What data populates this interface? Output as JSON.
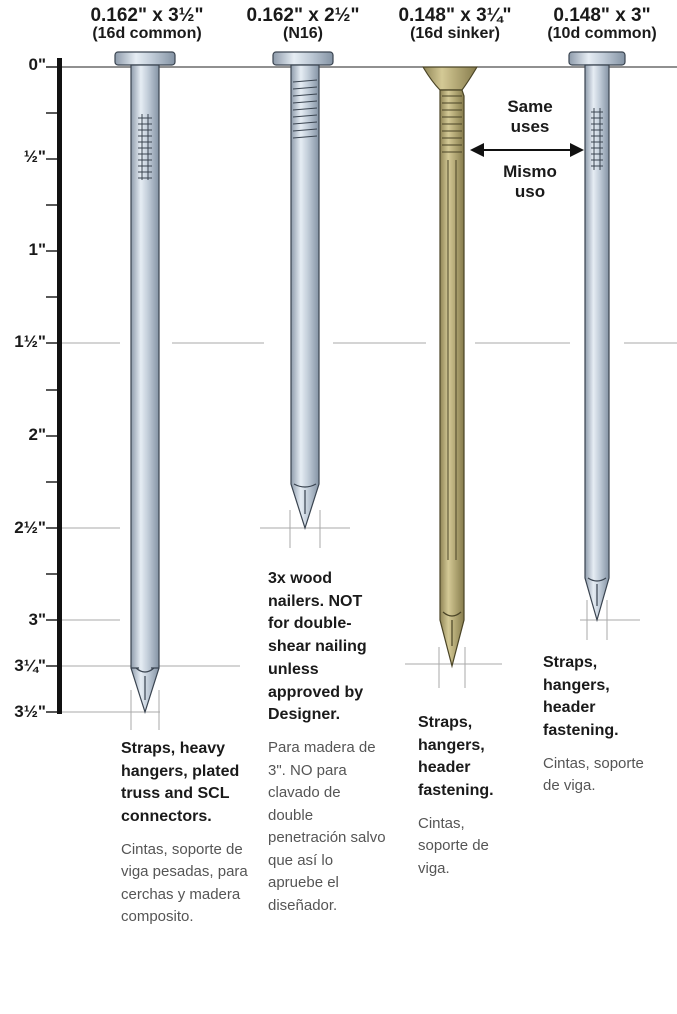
{
  "nails": [
    {
      "size": "0.162\" x 3½\"",
      "name": "(16d common)",
      "use_en": "Straps, heavy hangers, plated truss and SCL connectors.",
      "use_es": "Cintas, soporte de viga pesadas, para cerchas y madera composito."
    },
    {
      "size": "0.162\" x 2½\"",
      "name": "(N16)",
      "use_en": "3x wood nailers. NOT for double-shear nailing unless approved by Designer.",
      "use_es": "Para madera de 3\". NO para clavado de double penetración salvo que así lo apruebe el diseñador."
    },
    {
      "size": "0.148\" x 3¼\"",
      "name": "(16d sinker)",
      "use_en": "Straps, hangers, header fastening.",
      "use_es": "Cintas, soporte de viga."
    },
    {
      "size": "0.148\" x 3\"",
      "name": "(10d common)",
      "use_en": "Straps, hangers, header fastening.",
      "use_es": "Cintas, soporte de viga."
    }
  ],
  "ruler": {
    "labels": [
      "0\"",
      "½\"",
      "1\"",
      "1½\"",
      "2\"",
      "2½\"",
      "3\"",
      "3¼\"",
      "3½\""
    ]
  },
  "same_uses": {
    "en_1": "Same",
    "en_2": "uses",
    "es_1": "Mismo",
    "es_2": "uso"
  },
  "colors": {
    "steel": "#c9d4e0",
    "steel_dark": "#7d8a99",
    "sinker": "#b9ae7c",
    "sinker_dark": "#7d7448",
    "ruler": "#111111",
    "guide": "#9a9a9a"
  }
}
